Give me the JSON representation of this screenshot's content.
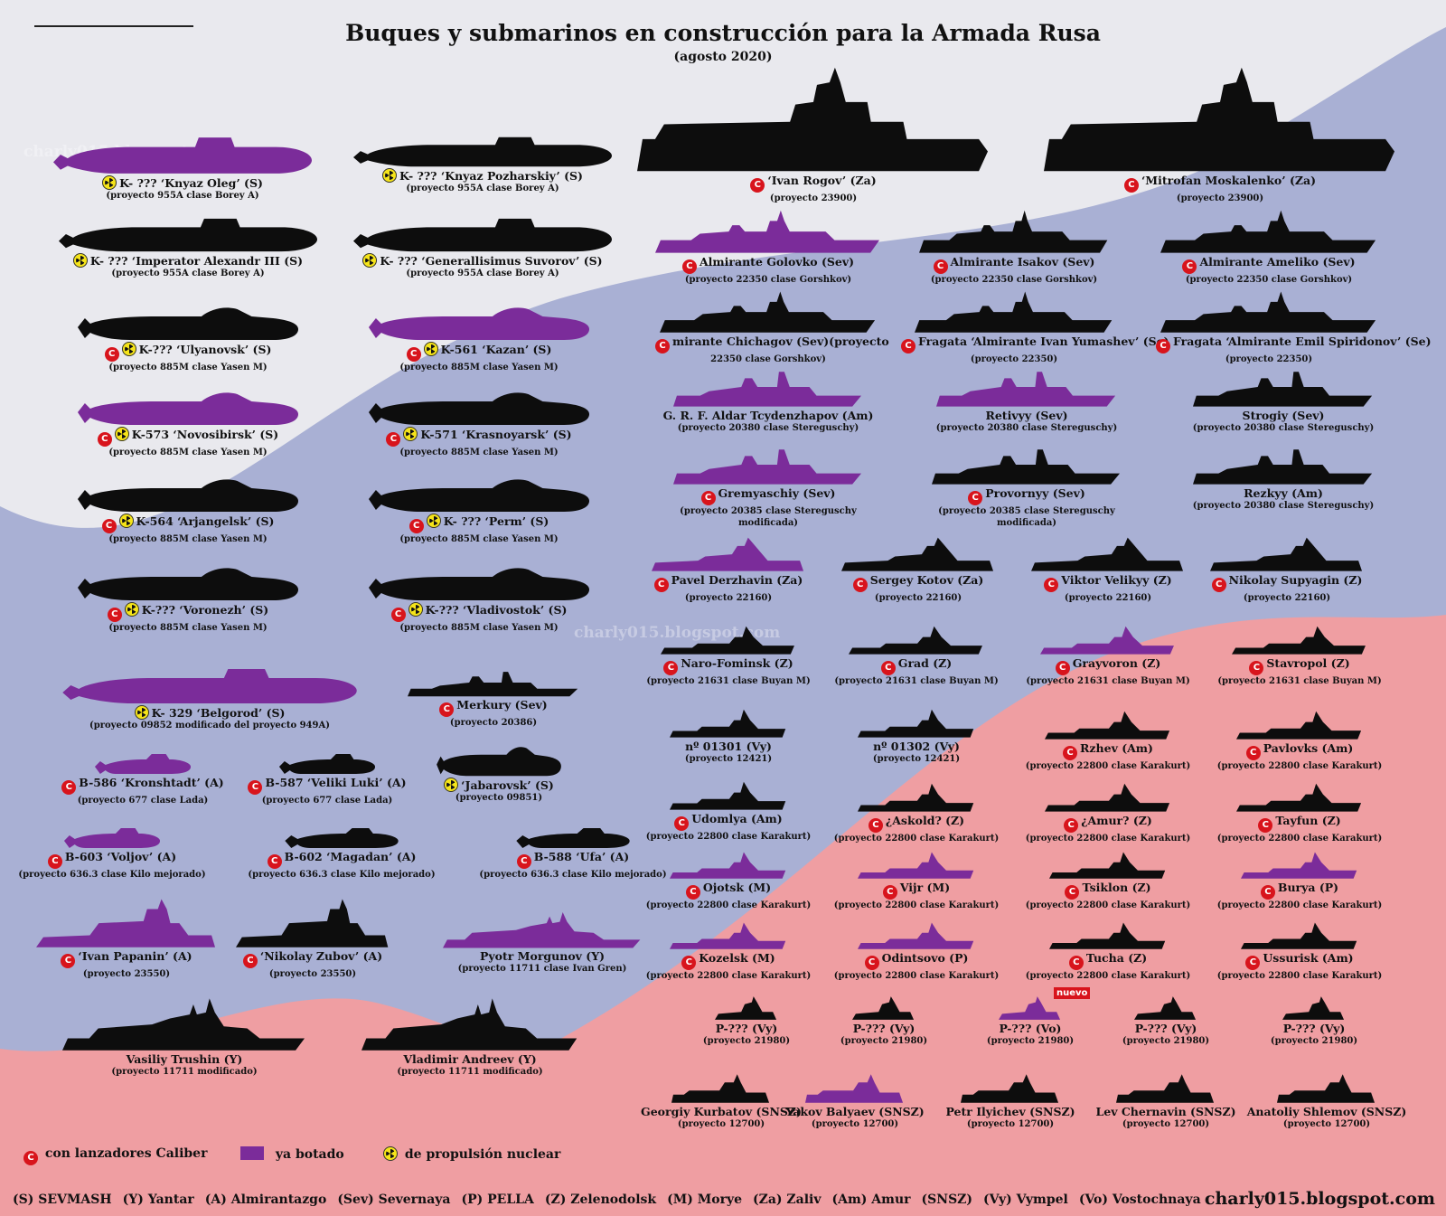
{
  "header": {
    "title": "Buques y submarinos en construcción para la Armada Rusa",
    "subtitle": "(agosto 2020)"
  },
  "colors": {
    "launched": "#7b2c9a",
    "unlaunched": "#0d0d0d",
    "caliber_badge": "#d8141c",
    "nuclear_badge": "#f5e419"
  },
  "watermarks": [
    "charly015.blogspot.com",
    "charly015.blogspot.com"
  ],
  "vessels": [
    {
      "name": "K- ??? ‘Knyaz Oleg’ (S)",
      "project": "(proyecto 955A clase Borey A)",
      "launched": true,
      "caliber": false,
      "nuclear": true,
      "shape": "submarine-borey"
    },
    {
      "name": "K- ??? ‘Knyaz Pozharskiy’ (S)",
      "project": "(proyecto 955A clase Borey A)",
      "launched": false,
      "caliber": false,
      "nuclear": true,
      "shape": "submarine-borey"
    },
    {
      "name": "K- ??? ‘Imperator Alexandr III (S)",
      "project": "(proyecto 955A clase Borey A)",
      "launched": false,
      "caliber": false,
      "nuclear": true,
      "shape": "submarine-borey"
    },
    {
      "name": "K- ??? ‘Generallisimus Suvorov’ (S)",
      "project": "(proyecto 955A clase Borey A)",
      "launched": false,
      "caliber": false,
      "nuclear": true,
      "shape": "submarine-borey"
    },
    {
      "name": "K-??? ‘Ulyanovsk’ (S)",
      "project": "(proyecto 885M clase Yasen M)",
      "launched": false,
      "caliber": true,
      "nuclear": true,
      "shape": "submarine-yasen"
    },
    {
      "name": "K-561 ‘Kazan’ (S)",
      "project": "(proyecto 885M clase Yasen M)",
      "launched": true,
      "caliber": true,
      "nuclear": true,
      "shape": "submarine-yasen"
    },
    {
      "name": "K-573 ‘Novosibirsk’ (S)",
      "project": "(proyecto 885M clase Yasen M)",
      "launched": true,
      "caliber": true,
      "nuclear": true,
      "shape": "submarine-yasen"
    },
    {
      "name": "K-571 ‘Krasnoyarsk’ (S)",
      "project": "(proyecto 885M clase Yasen M)",
      "launched": false,
      "caliber": true,
      "nuclear": true,
      "shape": "submarine-yasen"
    },
    {
      "name": "K-564 ‘Arjangelsk’ (S)",
      "project": "(proyecto 885M clase Yasen M)",
      "launched": false,
      "caliber": true,
      "nuclear": true,
      "shape": "submarine-yasen"
    },
    {
      "name": "K- ??? ‘Perm’ (S)",
      "project": "(proyecto 885M clase Yasen M)",
      "launched": false,
      "caliber": true,
      "nuclear": true,
      "shape": "submarine-yasen"
    },
    {
      "name": "K-??? ‘Voronezh’ (S)",
      "project": "(proyecto 885M clase Yasen M)",
      "launched": false,
      "caliber": true,
      "nuclear": true,
      "shape": "submarine-yasen"
    },
    {
      "name": "K-??? ‘Vladivostok’ (S)",
      "project": "(proyecto 885M clase Yasen M)",
      "launched": false,
      "caliber": true,
      "nuclear": true,
      "shape": "submarine-yasen"
    },
    {
      "name": "K- 329 ‘Belgorod’ (S)",
      "project": "(proyecto 09852 modificado del proyecto 949A)",
      "launched": true,
      "caliber": false,
      "nuclear": true,
      "shape": "submarine-borey"
    },
    {
      "name": "Merkury (Sev)",
      "project": "(proyecto 20386)",
      "launched": false,
      "caliber": true,
      "nuclear": false,
      "shape": "corvette"
    },
    {
      "name": "B-586 ‘Kronshtadt’ (A)",
      "project": "(proyecto 677 clase Lada)",
      "launched": true,
      "caliber": true,
      "nuclear": false,
      "shape": "submarine-small"
    },
    {
      "name": "B-587 ‘Veliki Luki’ (A)",
      "project": "(proyecto 677 clase Lada)",
      "launched": false,
      "caliber": true,
      "nuclear": false,
      "shape": "submarine-small"
    },
    {
      "name": "‘Jabarovsk’ (S)",
      "project": "(proyecto 09851)",
      "launched": false,
      "caliber": false,
      "nuclear": true,
      "shape": "submarine-yasen"
    },
    {
      "name": "B-603 ‘Voljov’ (A)",
      "project": "(proyecto 636.3 clase Kilo mejorado)",
      "launched": true,
      "caliber": true,
      "nuclear": false,
      "shape": "submarine-small"
    },
    {
      "name": "B-602 ‘Magadan’ (A)",
      "project": "(proyecto 636.3 clase Kilo mejorado)",
      "launched": false,
      "caliber": true,
      "nuclear": false,
      "shape": "submarine-small"
    },
    {
      "name": "B-588 ‘Ufa’ (A)",
      "project": "(proyecto 636.3 clase Kilo mejorado)",
      "launched": false,
      "caliber": true,
      "nuclear": false,
      "shape": "submarine-small"
    },
    {
      "name": "‘Ivan Papanin’ (A)",
      "project": "(proyecto 23550)",
      "launched": true,
      "caliber": true,
      "nuclear": false,
      "shape": "icebreaker"
    },
    {
      "name": "‘Nikolay Zubov’ (A)",
      "project": "(proyecto 23550)",
      "launched": false,
      "caliber": true,
      "nuclear": false,
      "shape": "icebreaker"
    },
    {
      "name": "Pyotr Morgunov (Y)",
      "project": "(proyecto 11711 clase Ivan Gren)",
      "launched": true,
      "caliber": false,
      "nuclear": false,
      "shape": "landing"
    },
    {
      "name": "Vasiliy Trushin (Y)",
      "project": "(proyecto 11711 modificado)",
      "launched": false,
      "caliber": false,
      "nuclear": false,
      "shape": "landing"
    },
    {
      "name": "Vladimir Andreev (Y)",
      "project": "(proyecto 11711 modificado)",
      "launched": false,
      "caliber": false,
      "nuclear": false,
      "shape": "landing"
    },
    {
      "name": "‘Ivan Rogov’ (Za)",
      "project": "(proyecto 23900)",
      "launched": false,
      "caliber": true,
      "nuclear": false,
      "shape": "big-amphib"
    },
    {
      "name": "‘Mitrofan Moskalenko’ (Za)",
      "project": "(proyecto 23900)",
      "launched": false,
      "caliber": true,
      "nuclear": false,
      "shape": "big-amphib"
    },
    {
      "name": "Almirante Golovko (Sev)",
      "project": "(proyecto 22350 clase Gorshkov)",
      "launched": true,
      "caliber": true,
      "nuclear": false,
      "shape": "frigate"
    },
    {
      "name": "Almirante Isakov (Sev)",
      "project": "(proyecto 22350 clase Gorshkov)",
      "launched": false,
      "caliber": true,
      "nuclear": false,
      "shape": "frigate"
    },
    {
      "name": "Almirante Ameliko (Sev)",
      "project": "(proyecto 22350 clase Gorshkov)",
      "launched": false,
      "caliber": true,
      "nuclear": false,
      "shape": "frigate"
    },
    {
      "name": "mirante Chichagov (Sev)(proyecto",
      "project": "22350 clase Gorshkov)",
      "launched": false,
      "caliber": true,
      "nuclear": false,
      "shape": "frigate"
    },
    {
      "name": "Fragata ‘Almirante Ivan Yumashev’ (Se)",
      "project": "(proyecto 22350)",
      "launched": false,
      "caliber": true,
      "nuclear": false,
      "shape": "frigate"
    },
    {
      "name": "Fragata ‘Almirante Emil Spiridonov’ (Se)",
      "project": "(proyecto 22350)",
      "launched": false,
      "caliber": true,
      "nuclear": false,
      "shape": "frigate"
    },
    {
      "name": "G. R. F. Aldar Tcydenzhapov (Am)",
      "project": "(proyecto 20380 clase Stereguschy)",
      "launched": true,
      "caliber": false,
      "nuclear": false,
      "shape": "corvette"
    },
    {
      "name": "Retivyy (Sev)",
      "project": "(proyecto 20380 clase Stereguschy)",
      "launched": true,
      "caliber": false,
      "nuclear": false,
      "shape": "corvette"
    },
    {
      "name": "Strogiy (Sev)",
      "project": "(proyecto 20380 clase Stereguschy)",
      "launched": false,
      "caliber": false,
      "nuclear": false,
      "shape": "corvette"
    },
    {
      "name": "Gremyaschiy (Sev)",
      "project": "(proyecto 20385 clase Stereguschy modificada)",
      "launched": true,
      "caliber": true,
      "nuclear": false,
      "shape": "corvette"
    },
    {
      "name": "Provornyy (Sev)",
      "project": "(proyecto 20385 clase Stereguschy modificada)",
      "launched": false,
      "caliber": true,
      "nuclear": false,
      "shape": "corvette"
    },
    {
      "name": "Rezkyy (Am)",
      "project": "(proyecto 20380 clase Stereguschy)",
      "launched": false,
      "caliber": false,
      "nuclear": false,
      "shape": "corvette"
    },
    {
      "name": "Pavel Derzhavin (Za)",
      "project": "(proyecto 22160)",
      "launched": true,
      "caliber": true,
      "nuclear": false,
      "shape": "patrol"
    },
    {
      "name": "Sergey Kotov (Za)",
      "project": "(proyecto 22160)",
      "launched": false,
      "caliber": true,
      "nuclear": false,
      "shape": "patrol"
    },
    {
      "name": "Viktor Velikyy (Z)",
      "project": "(proyecto 22160)",
      "launched": false,
      "caliber": true,
      "nuclear": false,
      "shape": "patrol"
    },
    {
      "name": "Nikolay Supyagin (Z)",
      "project": "(proyecto 22160)",
      "launched": false,
      "caliber": true,
      "nuclear": false,
      "shape": "patrol"
    },
    {
      "name": "Naro-Fominsk (Z)",
      "project": "(proyecto 21631 clase Buyan M)",
      "launched": false,
      "caliber": true,
      "nuclear": false,
      "shape": "small-ship"
    },
    {
      "name": "Grad (Z)",
      "project": "(proyecto 21631 clase Buyan M)",
      "launched": false,
      "caliber": true,
      "nuclear": false,
      "shape": "small-ship"
    },
    {
      "name": "Grayvoron (Z)",
      "project": "(proyecto 21631 clase Buyan M)",
      "launched": true,
      "caliber": true,
      "nuclear": false,
      "shape": "small-ship"
    },
    {
      "name": "Stavropol (Z)",
      "project": "(proyecto 21631 clase Buyan M)",
      "launched": false,
      "caliber": true,
      "nuclear": false,
      "shape": "small-ship"
    },
    {
      "name": "nº 01301 (Vy)",
      "project": "(proyecto 12421)",
      "launched": false,
      "caliber": false,
      "nuclear": false,
      "shape": "small-ship"
    },
    {
      "name": "nº 01302 (Vy)",
      "project": "(proyecto 12421)",
      "launched": false,
      "caliber": false,
      "nuclear": false,
      "shape": "small-ship"
    },
    {
      "name": "Rzhev (Am)",
      "project": "(proyecto 22800 clase Karakurt)",
      "launched": false,
      "caliber": true,
      "nuclear": false,
      "shape": "small-ship"
    },
    {
      "name": "Pavlovks (Am)",
      "project": "(proyecto 22800 clase Karakurt)",
      "launched": false,
      "caliber": true,
      "nuclear": false,
      "shape": "small-ship"
    },
    {
      "name": "Udomlya (Am)",
      "project": "(proyecto 22800 clase Karakurt)",
      "launched": false,
      "caliber": true,
      "nuclear": false,
      "shape": "small-ship"
    },
    {
      "name": "¿Askold? (Z)",
      "project": "(proyecto 22800 clase Karakurt)",
      "launched": false,
      "caliber": true,
      "nuclear": false,
      "shape": "small-ship"
    },
    {
      "name": "¿Amur? (Z)",
      "project": "(proyecto 22800 clase Karakurt)",
      "launched": false,
      "caliber": true,
      "nuclear": false,
      "shape": "small-ship"
    },
    {
      "name": "Tayfun (Z)",
      "project": "(proyecto 22800 clase Karakurt)",
      "launched": false,
      "caliber": true,
      "nuclear": false,
      "shape": "small-ship"
    },
    {
      "name": "Ojotsk (M)",
      "project": "(proyecto 22800 clase Karakurt)",
      "launched": true,
      "caliber": true,
      "nuclear": false,
      "shape": "small-ship"
    },
    {
      "name": "Vijr (M)",
      "project": "(proyecto 22800 clase Karakurt)",
      "launched": true,
      "caliber": true,
      "nuclear": false,
      "shape": "small-ship"
    },
    {
      "name": "Tsiklon (Z)",
      "project": "(proyecto 22800 clase Karakurt)",
      "launched": false,
      "caliber": true,
      "nuclear": false,
      "shape": "small-ship"
    },
    {
      "name": "Burya (P)",
      "project": "(proyecto 22800 clase Karakurt)",
      "launched": true,
      "caliber": true,
      "nuclear": false,
      "shape": "small-ship"
    },
    {
      "name": "Kozelsk (M)",
      "project": "(proyecto 22800 clase Karakurt)",
      "launched": true,
      "caliber": true,
      "nuclear": false,
      "shape": "small-ship"
    },
    {
      "name": "Odintsovo (P)",
      "project": "(proyecto 22800 clase Karakurt)",
      "launched": true,
      "caliber": true,
      "nuclear": false,
      "shape": "small-ship"
    },
    {
      "name": "Tucha (Z)",
      "project": "(proyecto 22800 clase Karakurt)",
      "launched": false,
      "caliber": true,
      "nuclear": false,
      "shape": "small-ship"
    },
    {
      "name": "Ussurisk (Am)",
      "project": "(proyecto 22800 clase Karakurt)",
      "launched": false,
      "caliber": true,
      "nuclear": false,
      "shape": "small-ship"
    },
    {
      "name": "P-??? (Vy)",
      "project": "(proyecto 21980)",
      "launched": false,
      "caliber": false,
      "nuclear": false,
      "shape": "boat"
    },
    {
      "name": "P-??? (Vy)",
      "project": "(proyecto 21980)",
      "launched": false,
      "caliber": false,
      "nuclear": false,
      "shape": "boat"
    },
    {
      "name": "P-??? (Vo)",
      "project": "(proyecto 21980)",
      "launched": true,
      "caliber": false,
      "nuclear": false,
      "shape": "boat",
      "badge": "nuevo"
    },
    {
      "name": "P-??? (Vy)",
      "project": "(proyecto 21980)",
      "launched": false,
      "caliber": false,
      "nuclear": false,
      "shape": "boat"
    },
    {
      "name": "P-??? (Vy)",
      "project": "(proyecto 21980)",
      "launched": false,
      "caliber": false,
      "nuclear": false,
      "shape": "boat"
    },
    {
      "name": "Georgiy Kurbatov (SNSZ)",
      "project": "(proyecto 12700)",
      "launched": false,
      "caliber": false,
      "nuclear": false,
      "shape": "minesweeper"
    },
    {
      "name": "Yakov Balyaev (SNSZ)",
      "project": "(proyecto 12700)",
      "launched": true,
      "caliber": false,
      "nuclear": false,
      "shape": "minesweeper"
    },
    {
      "name": "Petr Ilyichev (SNSZ)",
      "project": "(proyecto 12700)",
      "launched": false,
      "caliber": false,
      "nuclear": false,
      "shape": "minesweeper"
    },
    {
      "name": "Lev Chernavin (SNSZ)",
      "project": "(proyecto 12700)",
      "launched": false,
      "caliber": false,
      "nuclear": false,
      "shape": "minesweeper"
    },
    {
      "name": "Anatoliy Shlemov (SNSZ)",
      "project": "(proyecto 12700)",
      "launched": false,
      "caliber": false,
      "nuclear": false,
      "shape": "minesweeper"
    }
  ],
  "legend": {
    "caliber_icon": "caliber-c-icon",
    "caliber": "con lanzadores Caliber",
    "launched": "ya botado",
    "nuclear_icon": "radiation-icon",
    "nuclear": "de propulsión nuclear"
  },
  "shipyards": [
    "(S) SEVMASH",
    "(Y) Yantar",
    "(A) Almirantazgo",
    "(Sev) Severnaya",
    "(P) PELLA",
    "(Z) Zelenodolsk",
    "(M) Morye",
    "(Za) Zaliv",
    "(Am) Amur",
    "(SNSZ)",
    "(Vy) Vympel",
    "(Vo) Vostochnaya"
  ],
  "blog": "charly015.blogspot.com"
}
